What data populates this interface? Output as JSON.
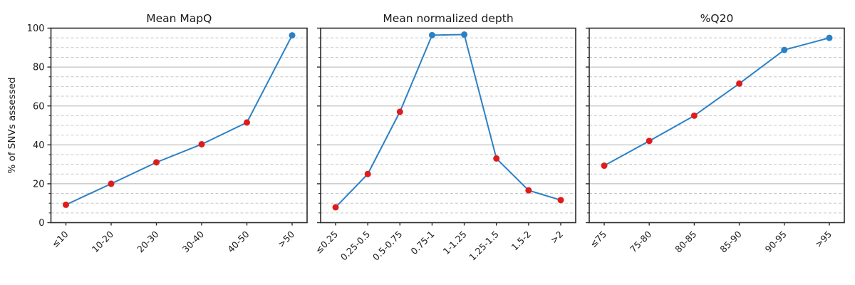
{
  "figure": {
    "ylabel": "% of SNVs assessed",
    "background": "#ffffff"
  },
  "style": {
    "line_color": "#2b81c5",
    "marker_red": "#e01b1c",
    "marker_blue": "#2b81c5",
    "grid_major_color": "#b0b0b0",
    "grid_minor_color": "#c7c7c7",
    "spine_color": "#2b2b2b",
    "text_color": "#1a1a1a"
  },
  "chart_data": [
    {
      "type": "line",
      "title": "Mean MapQ",
      "categories": [
        "≤10",
        "10-20",
        "20-30",
        "30-40",
        "40-50",
        ">50"
      ],
      "values": [
        9.2,
        20.0,
        31.0,
        40.3,
        51.5,
        96.3
      ],
      "marker_colors": [
        "red",
        "red",
        "red",
        "red",
        "red",
        "blue"
      ],
      "xlabel": "",
      "ylabel": "% of SNVs assessed",
      "ylim": [
        0,
        100
      ],
      "yticks": [
        0,
        20,
        40,
        60,
        80,
        100
      ],
      "minor_tick_step": 5,
      "grid": {
        "major": "solid",
        "minor": "dashed"
      },
      "legend": "none"
    },
    {
      "type": "line",
      "title": "Mean normalized depth",
      "categories": [
        "≤0.25",
        "0.25-0.5",
        "0.5-0.75",
        "0.75-1",
        "1-1.25",
        "1.25-1.5",
        "1.5-2",
        ">2"
      ],
      "values": [
        7.9,
        25.0,
        57.0,
        96.4,
        96.7,
        33.0,
        16.6,
        11.6
      ],
      "marker_colors": [
        "red",
        "red",
        "red",
        "blue",
        "blue",
        "red",
        "red",
        "red"
      ],
      "xlabel": "",
      "ylabel": "",
      "ylim": [
        0,
        100
      ],
      "yticks": [
        0,
        20,
        40,
        60,
        80,
        100
      ],
      "minor_tick_step": 5,
      "grid": {
        "major": "solid",
        "minor": "dashed"
      },
      "legend": "none"
    },
    {
      "type": "line",
      "title": "%Q20",
      "categories": [
        "≤75",
        "75-80",
        "80-85",
        "85-90",
        "90-95",
        ">95"
      ],
      "values": [
        29.3,
        42.0,
        55.0,
        71.5,
        88.8,
        95.0
      ],
      "marker_colors": [
        "red",
        "red",
        "red",
        "red",
        "blue",
        "blue"
      ],
      "xlabel": "",
      "ylabel": "",
      "ylim": [
        0,
        100
      ],
      "yticks": [
        0,
        20,
        40,
        60,
        80,
        100
      ],
      "minor_tick_step": 5,
      "grid": {
        "major": "solid",
        "minor": "dashed"
      },
      "legend": "none"
    }
  ]
}
